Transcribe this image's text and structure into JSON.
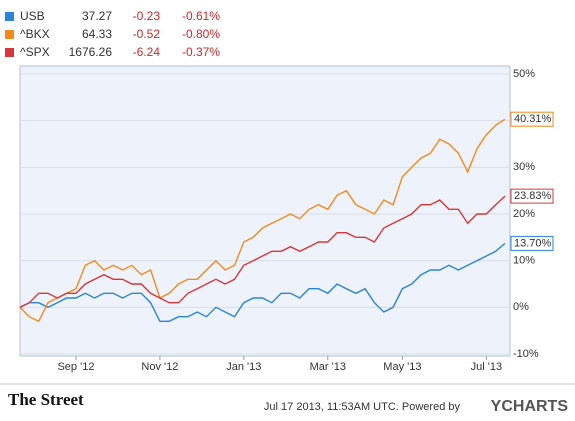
{
  "chart_data": {
    "type": "line",
    "categories": [
      null,
      null,
      null,
      null,
      null,
      null,
      "Sep '12",
      null,
      null,
      null,
      null,
      null,
      null,
      null,
      null,
      "Nov '12",
      null,
      null,
      null,
      null,
      null,
      null,
      null,
      null,
      "Jan '13",
      null,
      null,
      null,
      null,
      null,
      null,
      null,
      null,
      "Mar '13",
      null,
      null,
      null,
      null,
      null,
      null,
      null,
      "May '13",
      null,
      null,
      null,
      null,
      null,
      null,
      null,
      null,
      "Jul '13",
      null,
      null
    ],
    "series": [
      {
        "name": "USB",
        "price": "37.27",
        "change": "-0.23",
        "change_pct": "-0.61%",
        "color": "#2a84d8",
        "values": [
          0,
          1,
          1,
          0,
          1,
          2,
          2,
          3,
          2,
          3,
          3,
          2,
          3,
          3,
          1,
          -3,
          -3,
          -2,
          -2,
          -1,
          -2,
          0,
          -1,
          -2,
          1,
          2,
          2,
          1,
          3,
          3,
          2,
          4,
          4,
          3,
          5,
          4,
          3,
          4,
          1,
          -1,
          0,
          4,
          5,
          7,
          8,
          8,
          9,
          8,
          9,
          10,
          11,
          12,
          13.7
        ],
        "value_labels": [
          null,
          null,
          null,
          null,
          null,
          null,
          null,
          null,
          null,
          null,
          null,
          null,
          null,
          null,
          null,
          null,
          null,
          null,
          null,
          null,
          null,
          null,
          null,
          null,
          null,
          null,
          null,
          null,
          null,
          null,
          null,
          null,
          null,
          null,
          null,
          null,
          null,
          null,
          null,
          null,
          null,
          null,
          null,
          null,
          null,
          null,
          null,
          null,
          null,
          null,
          null,
          null,
          "13.70%"
        ]
      },
      {
        "name": "^BKX",
        "price": "64.33",
        "change": "-0.52",
        "change_pct": "-0.80%",
        "color": "#f48a1c",
        "values": [
          0,
          -2,
          -3,
          1,
          2,
          3,
          4,
          9,
          10,
          8,
          9,
          8,
          9,
          7,
          8,
          2,
          3,
          5,
          6,
          6,
          8,
          10,
          8,
          9,
          14,
          15,
          17,
          18,
          19,
          20,
          19,
          21,
          22,
          21,
          24,
          25,
          22,
          21,
          20,
          23,
          22,
          28,
          30,
          32,
          33,
          36,
          35,
          33,
          29,
          34,
          37,
          39,
          40.31
        ],
        "value_labels": [
          null,
          null,
          null,
          null,
          null,
          null,
          null,
          null,
          null,
          null,
          null,
          null,
          null,
          null,
          null,
          null,
          null,
          null,
          null,
          null,
          null,
          null,
          null,
          null,
          null,
          null,
          null,
          null,
          null,
          null,
          null,
          null,
          null,
          null,
          null,
          null,
          null,
          null,
          null,
          null,
          null,
          null,
          null,
          null,
          null,
          null,
          null,
          null,
          null,
          null,
          null,
          null,
          "40.31%"
        ]
      },
      {
        "name": "^SPX",
        "price": "1676.26",
        "change": "-6.24",
        "change_pct": "-0.37%",
        "color": "#d9363a",
        "values": [
          0,
          1,
          3,
          3,
          2,
          3,
          3,
          5,
          6,
          7,
          6,
          6,
          5,
          5,
          3,
          2,
          1,
          1,
          3,
          4,
          5,
          6,
          5,
          6,
          9,
          10,
          11,
          12,
          12,
          13,
          12,
          13,
          14,
          14,
          16,
          16,
          15,
          15,
          14,
          17,
          18,
          19,
          20,
          22,
          22,
          23,
          21,
          21,
          18,
          20,
          20,
          22,
          23.83
        ],
        "value_labels": [
          null,
          null,
          null,
          null,
          null,
          null,
          null,
          null,
          null,
          null,
          null,
          null,
          null,
          null,
          null,
          null,
          null,
          null,
          null,
          null,
          null,
          null,
          null,
          null,
          null,
          null,
          null,
          null,
          null,
          null,
          null,
          null,
          null,
          null,
          null,
          null,
          null,
          null,
          null,
          null,
          null,
          null,
          null,
          null,
          null,
          null,
          null,
          null,
          null,
          null,
          null,
          null,
          "23.83%"
        ]
      }
    ],
    "ylim": [
      -10,
      50
    ],
    "yticks": [
      {
        "value": -10,
        "label": "-10%"
      },
      {
        "value": 0,
        "label": "0%"
      },
      {
        "value": 10,
        "label": "10%"
      },
      {
        "value": 20,
        "label": "20%"
      },
      {
        "value": 30,
        "label": "30%"
      },
      {
        "value": 40,
        "label": "40%"
      },
      {
        "value": 50,
        "label": "50%"
      }
    ],
    "grid": true,
    "footer": {
      "brand": "The Street",
      "timestamp": "Jul 17 2013, 11:53AM UTC. Powered by",
      "provider": "YCHARTS"
    }
  }
}
